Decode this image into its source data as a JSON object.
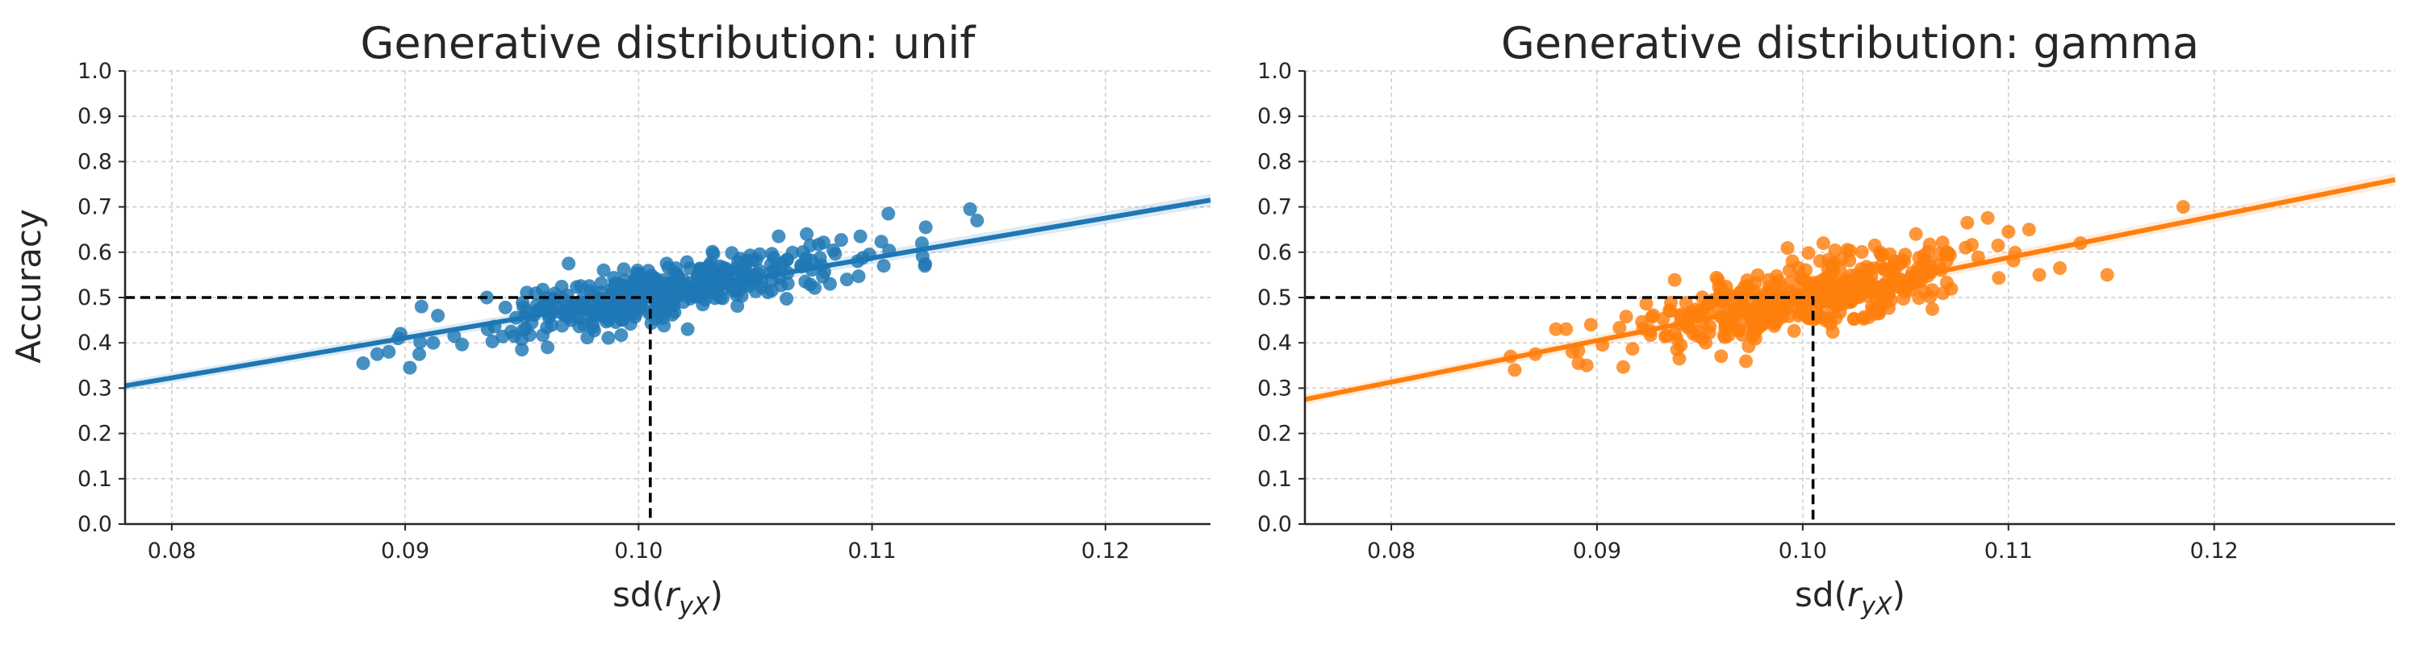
{
  "chart_data": [
    {
      "type": "scatter",
      "title": "Generative distribution: unif",
      "ylabel": "Accuracy",
      "xlabel_base": "sd(",
      "xlabel_sub": "yX",
      "xlabel_end": ")",
      "xlim": [
        0.078,
        0.1245
      ],
      "ylim": [
        0.0,
        1.0
      ],
      "x_ticks": [
        0.08,
        0.09,
        0.1,
        0.11,
        0.12
      ],
      "x_tick_labels": [
        "0.08",
        "0.09",
        "0.10",
        "0.11",
        "0.12"
      ],
      "y_ticks": [
        0.0,
        0.1,
        0.2,
        0.3,
        0.4,
        0.5,
        0.6,
        0.7,
        0.8,
        0.9,
        1.0
      ],
      "y_tick_labels": [
        "0.0",
        "0.1",
        "0.2",
        "0.3",
        "0.4",
        "0.5",
        "0.6",
        "0.7",
        "0.8",
        "0.9",
        "1.0"
      ],
      "grid": true,
      "color": "#1f77b4",
      "regression_line": {
        "x": [
          0.078,
          0.1245
        ],
        "y": [
          0.305,
          0.715
        ]
      },
      "reference": {
        "x": 0.1005,
        "y": 0.5
      },
      "point_cloud": {
        "count": 420,
        "x_range": [
          0.088,
          0.1145
        ],
        "slope": 9.0,
        "intercept": -0.398,
        "noise": 0.028,
        "seed": 7
      },
      "points": [
        [
          0.0882,
          0.355
        ],
        [
          0.0888,
          0.375
        ],
        [
          0.0893,
          0.38
        ],
        [
          0.0897,
          0.41
        ],
        [
          0.0898,
          0.42
        ],
        [
          0.0902,
          0.345
        ],
        [
          0.0906,
          0.375
        ],
        [
          0.0907,
          0.48
        ],
        [
          0.0912,
          0.4
        ],
        [
          0.0914,
          0.46
        ],
        [
          0.0921,
          0.415
        ],
        [
          0.0935,
          0.5
        ],
        [
          0.095,
          0.385
        ],
        [
          0.0961,
          0.39
        ],
        [
          0.097,
          0.575
        ],
        [
          0.0985,
          0.56
        ],
        [
          0.1012,
          0.575
        ],
        [
          0.1021,
          0.43
        ],
        [
          0.1035,
          0.5
        ],
        [
          0.106,
          0.635
        ],
        [
          0.1072,
          0.64
        ],
        [
          0.1082,
          0.53
        ],
        [
          0.1095,
          0.635
        ],
        [
          0.1105,
          0.57
        ],
        [
          0.1107,
          0.685
        ],
        [
          0.1123,
          0.655
        ],
        [
          0.1142,
          0.695
        ],
        [
          0.1145,
          0.67
        ]
      ]
    },
    {
      "type": "scatter",
      "title": "Generative distribution: gamma",
      "ylabel": "",
      "xlabel_base": "sd(",
      "xlabel_sub": "yX",
      "xlabel_end": ")",
      "xlim": [
        0.0758,
        0.1288
      ],
      "ylim": [
        0.0,
        1.0
      ],
      "x_ticks": [
        0.08,
        0.09,
        0.1,
        0.11,
        0.12
      ],
      "x_tick_labels": [
        "0.08",
        "0.09",
        "0.10",
        "0.11",
        "0.12"
      ],
      "y_ticks": [
        0.0,
        0.1,
        0.2,
        0.3,
        0.4,
        0.5,
        0.6,
        0.7,
        0.8,
        0.9,
        1.0
      ],
      "y_tick_labels": [
        "0.0",
        "0.1",
        "0.2",
        "0.3",
        "0.4",
        "0.5",
        "0.6",
        "0.7",
        "0.8",
        "0.9",
        "1.0"
      ],
      "grid": true,
      "color": "#ff7f0e",
      "regression_line": {
        "x": [
          0.0758,
          0.1288
        ],
        "y": [
          0.275,
          0.76
        ]
      },
      "reference": {
        "x": 0.1005,
        "y": 0.5
      },
      "point_cloud": {
        "count": 450,
        "x_range": [
          0.0858,
          0.115
        ],
        "slope": 9.2,
        "intercept": -0.42,
        "noise": 0.035,
        "seed": 13
      },
      "points": [
        [
          0.0858,
          0.37
        ],
        [
          0.086,
          0.34
        ],
        [
          0.087,
          0.375
        ],
        [
          0.088,
          0.43
        ],
        [
          0.0885,
          0.43
        ],
        [
          0.0888,
          0.38
        ],
        [
          0.0891,
          0.355
        ],
        [
          0.0895,
          0.35
        ],
        [
          0.0897,
          0.44
        ],
        [
          0.094,
          0.365
        ],
        [
          0.0995,
          0.58
        ],
        [
          0.101,
          0.62
        ],
        [
          0.1035,
          0.615
        ],
        [
          0.1055,
          0.64
        ],
        [
          0.108,
          0.665
        ],
        [
          0.1095,
          0.615
        ],
        [
          0.11,
          0.645
        ],
        [
          0.111,
          0.65
        ],
        [
          0.1115,
          0.55
        ],
        [
          0.1125,
          0.565
        ],
        [
          0.1135,
          0.62
        ],
        [
          0.1148,
          0.55
        ],
        [
          0.1185,
          0.7
        ]
      ]
    }
  ]
}
